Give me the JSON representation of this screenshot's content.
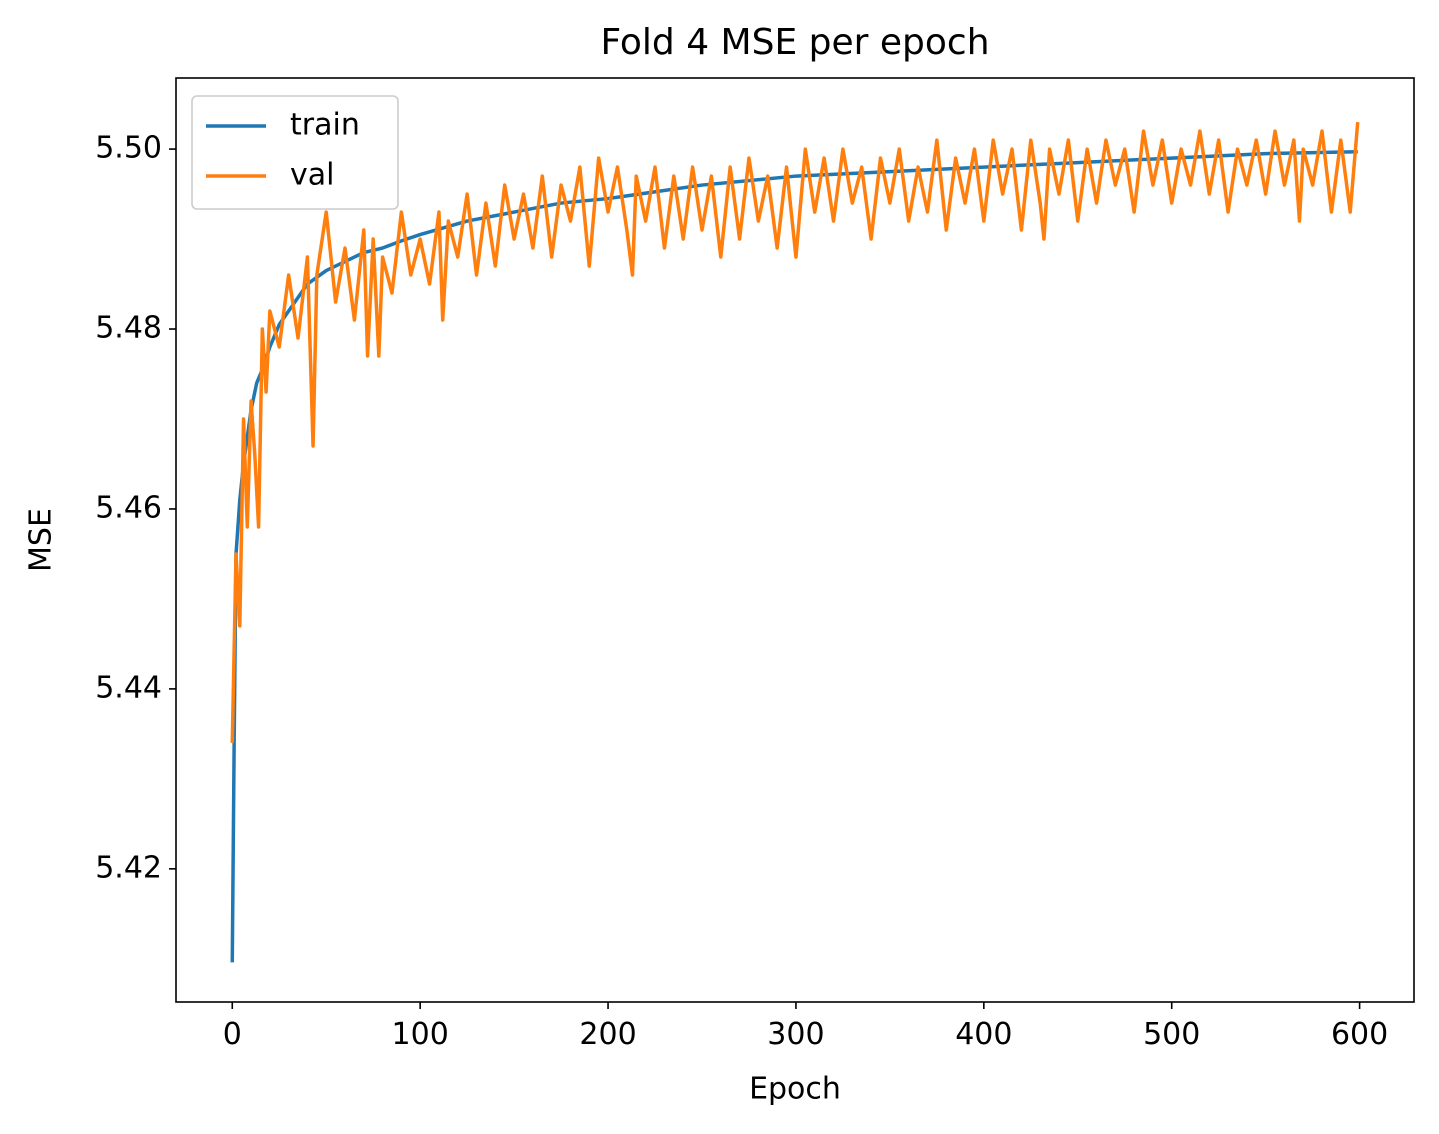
{
  "chart_data": {
    "type": "line",
    "title": "Fold 4 MSE per epoch",
    "xlabel": "Epoch",
    "ylabel": "MSE",
    "xlim": [
      -29.95,
      628.95
    ],
    "xticks": [
      0,
      100,
      200,
      300,
      400,
      500,
      600
    ],
    "ylim": [
      5.4052,
      5.5079
    ],
    "yticks": [
      {
        "value": 5.42,
        "label": "5.42"
      },
      {
        "value": 5.44,
        "label": "5.44"
      },
      {
        "value": 5.46,
        "label": "5.46"
      },
      {
        "value": 5.48,
        "label": "5.48"
      },
      {
        "value": 5.5,
        "label": "5.50"
      }
    ],
    "legend": "upper left",
    "grid": false,
    "series": [
      {
        "name": "train",
        "color": "#1f77b4",
        "x": [
          0,
          1,
          2,
          4,
          6,
          8,
          10,
          13,
          16,
          20,
          25,
          30,
          40,
          50,
          60,
          70,
          80,
          90,
          100,
          125,
          150,
          175,
          200,
          250,
          300,
          350,
          400,
          450,
          500,
          550,
          599
        ],
        "values": [
          5.4096,
          5.434,
          5.455,
          5.461,
          5.465,
          5.468,
          5.471,
          5.474,
          5.4755,
          5.478,
          5.4805,
          5.482,
          5.485,
          5.4865,
          5.4875,
          5.4885,
          5.489,
          5.4898,
          5.4905,
          5.492,
          5.493,
          5.494,
          5.4945,
          5.496,
          5.497,
          5.4975,
          5.498,
          5.4985,
          5.499,
          5.4995,
          5.4997
        ]
      },
      {
        "name": "val",
        "color": "#ff7f0e",
        "x": [
          0,
          2,
          4,
          6,
          8,
          10,
          12,
          14,
          16,
          18,
          20,
          25,
          30,
          35,
          40,
          43,
          45,
          50,
          55,
          60,
          65,
          70,
          72,
          75,
          78,
          80,
          85,
          90,
          95,
          100,
          105,
          110,
          112,
          115,
          120,
          125,
          130,
          135,
          140,
          145,
          150,
          155,
          160,
          165,
          170,
          175,
          180,
          185,
          190,
          195,
          200,
          205,
          210,
          213,
          215,
          220,
          225,
          230,
          235,
          240,
          245,
          250,
          255,
          260,
          265,
          270,
          275,
          280,
          285,
          290,
          295,
          300,
          305,
          310,
          315,
          320,
          325,
          330,
          335,
          340,
          345,
          350,
          355,
          360,
          365,
          370,
          375,
          380,
          385,
          390,
          395,
          400,
          405,
          410,
          415,
          420,
          425,
          430,
          432,
          435,
          440,
          445,
          450,
          455,
          460,
          465,
          470,
          475,
          480,
          485,
          490,
          495,
          500,
          505,
          510,
          515,
          520,
          525,
          530,
          535,
          540,
          545,
          550,
          555,
          560,
          565,
          568,
          570,
          575,
          580,
          585,
          590,
          595,
          599
        ],
        "values": [
          5.434,
          5.455,
          5.447,
          5.47,
          5.458,
          5.472,
          5.466,
          5.458,
          5.48,
          5.473,
          5.482,
          5.478,
          5.486,
          5.479,
          5.488,
          5.467,
          5.486,
          5.493,
          5.483,
          5.489,
          5.481,
          5.491,
          5.477,
          5.49,
          5.477,
          5.488,
          5.484,
          5.493,
          5.486,
          5.49,
          5.485,
          5.493,
          5.481,
          5.492,
          5.488,
          5.495,
          5.486,
          5.494,
          5.487,
          5.496,
          5.49,
          5.495,
          5.489,
          5.497,
          5.488,
          5.496,
          5.492,
          5.498,
          5.487,
          5.499,
          5.493,
          5.498,
          5.491,
          5.486,
          5.497,
          5.492,
          5.498,
          5.489,
          5.497,
          5.49,
          5.498,
          5.491,
          5.497,
          5.488,
          5.498,
          5.49,
          5.499,
          5.492,
          5.497,
          5.489,
          5.498,
          5.488,
          5.5,
          5.493,
          5.499,
          5.492,
          5.5,
          5.494,
          5.498,
          5.49,
          5.499,
          5.494,
          5.5,
          5.492,
          5.498,
          5.493,
          5.501,
          5.491,
          5.499,
          5.494,
          5.5,
          5.492,
          5.501,
          5.495,
          5.5,
          5.491,
          5.501,
          5.494,
          5.49,
          5.5,
          5.495,
          5.501,
          5.492,
          5.5,
          5.494,
          5.501,
          5.496,
          5.5,
          5.493,
          5.502,
          5.496,
          5.501,
          5.494,
          5.5,
          5.496,
          5.502,
          5.495,
          5.501,
          5.493,
          5.5,
          5.496,
          5.501,
          5.495,
          5.502,
          5.496,
          5.501,
          5.492,
          5.5,
          5.496,
          5.502,
          5.493,
          5.501,
          5.493,
          5.503
        ]
      }
    ]
  }
}
